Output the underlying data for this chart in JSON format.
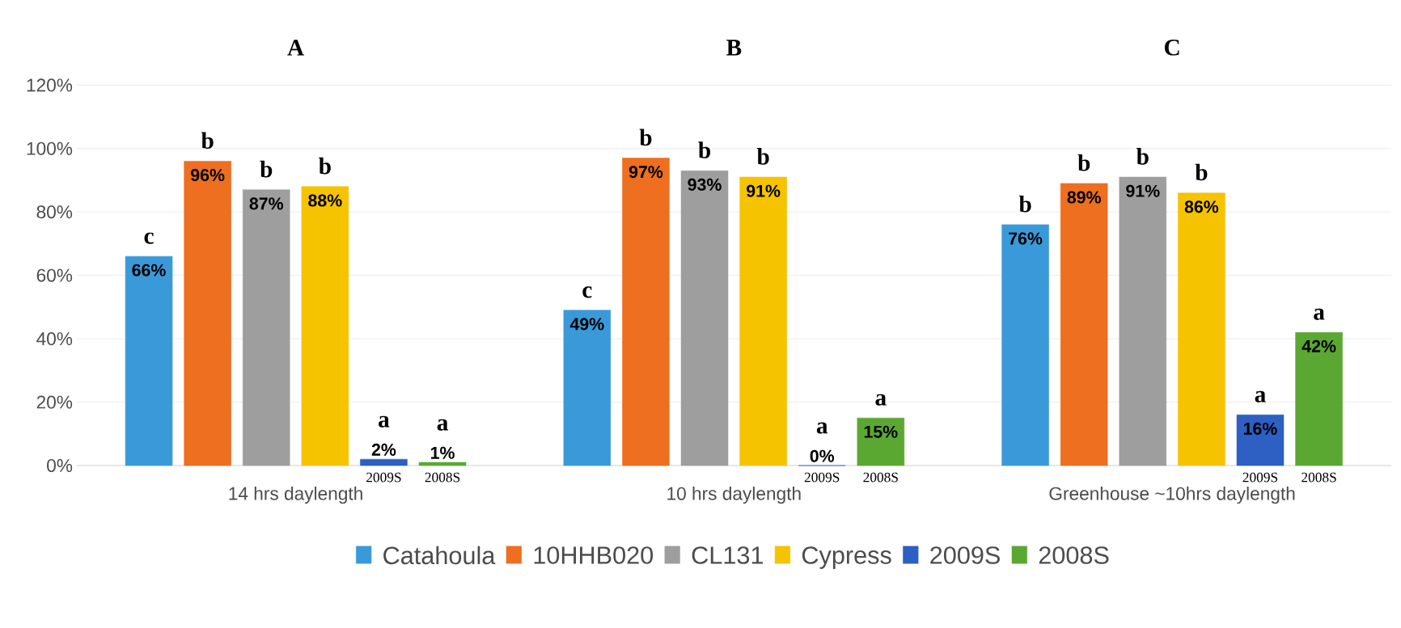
{
  "chart_data": {
    "type": "bar",
    "categories": [
      "14 hrs daylength",
      "10 hrs daylength",
      "Greenhouse ~10hrs daylength"
    ],
    "series": [
      {
        "name": "Catahoula",
        "color": "#3a9ad9",
        "values": [
          66,
          49,
          76
        ],
        "value_labels": [
          "66%",
          "49%",
          "76%"
        ]
      },
      {
        "name": "10HHB020",
        "color": "#ee6f1f",
        "values": [
          96,
          97,
          89
        ],
        "value_labels": [
          "96%",
          "97%",
          "89%"
        ]
      },
      {
        "name": "CL131",
        "color": "#9e9e9e",
        "values": [
          87,
          93,
          91
        ],
        "value_labels": [
          "87%",
          "93%",
          "91%"
        ]
      },
      {
        "name": "Cypress",
        "color": "#f5c300",
        "values": [
          88,
          91,
          86
        ],
        "value_labels": [
          "88%",
          "91%",
          "86%"
        ]
      },
      {
        "name": "2009S",
        "color": "#2e5fc2",
        "values": [
          2,
          0,
          16
        ],
        "value_labels": [
          "2%",
          "0%",
          "16%"
        ]
      },
      {
        "name": "2008S",
        "color": "#5aa832",
        "values": [
          1,
          15,
          42
        ],
        "value_labels": [
          "1%",
          "15%",
          "42%"
        ]
      }
    ],
    "ylim": [
      0,
      120
    ],
    "yticks": [
      {
        "value": 0,
        "label": "0%"
      },
      {
        "value": 20,
        "label": "20%"
      },
      {
        "value": 40,
        "label": "40%"
      },
      {
        "value": 60,
        "label": "60%"
      },
      {
        "value": 80,
        "label": "80%"
      },
      {
        "value": 100,
        "label": "100%"
      },
      {
        "value": 120,
        "label": "120%"
      }
    ],
    "grid": "y",
    "legend": "bottom",
    "annotations": [
      "A",
      "B",
      "C",
      "2009S",
      "2008S",
      "2009S",
      "2008S",
      "2009S",
      "2008S",
      "c",
      "b",
      "b",
      "b",
      "a",
      "a",
      "c",
      "b",
      "b",
      "b",
      "a",
      "a",
      "b",
      "b",
      "b",
      "b",
      "a",
      "a"
    ]
  }
}
